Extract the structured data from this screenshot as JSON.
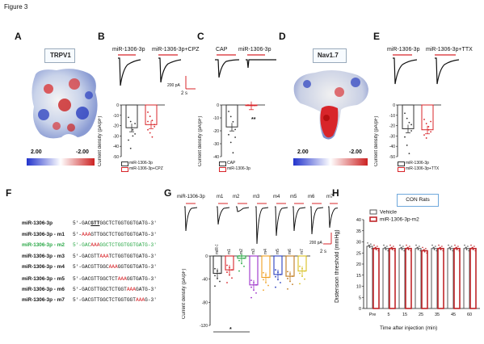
{
  "figure_title": "Figure 3",
  "panels": {
    "A": {
      "label": "A",
      "protein": "TRPV1",
      "scale_max": "2.00",
      "scale_min": "-2.00"
    },
    "B": {
      "label": "B",
      "trace_left": "miR-1306-3p",
      "trace_right": "miR-1306-3p+CPZ",
      "scale_current": "200 pA",
      "scale_time": "2 s",
      "ylabel": "Current density (pA/pF)",
      "legend": [
        "miR-1306-3p",
        "miR-1306-3p+CPZ"
      ]
    },
    "C": {
      "label": "C",
      "trace_left": "CAP",
      "trace_right": "miR-1306-3p",
      "ylabel": "Current density (pA/pF)",
      "legend": [
        "CAP",
        "miR-1306-3p"
      ],
      "sig": "**"
    },
    "D": {
      "label": "D",
      "protein": "Nav1.7",
      "scale_max": "2.00",
      "scale_min": "-2.00"
    },
    "E": {
      "label": "E",
      "trace_left": "miR-1306-3p",
      "trace_right": "miR-1306-3p+TTX",
      "ylabel": "Current density (pA/pF)",
      "legend": [
        "miR-1306-3p",
        "miR-1306-3p+TTX"
      ]
    },
    "F": {
      "label": "F"
    },
    "G": {
      "label": "G",
      "trace_labels": [
        "miR-1306-3p",
        "m1",
        "m2",
        "m3",
        "m4",
        "m5",
        "m6",
        "m7"
      ],
      "scale_current": "200 pA",
      "scale_time": "2 s",
      "ylabel": "Current density (pA/pF)",
      "sig": "*"
    },
    "H": {
      "label": "H",
      "title": "CON Rats",
      "legend": [
        "Vehicle",
        "miR-1306-3p-m2"
      ],
      "ylabel": "Distension threshold (mmHg)",
      "xlabel": "Time after injection (min)"
    }
  },
  "sequences": [
    {
      "name": "miR-1306-3p",
      "seq": "5'-GACGTTGGCTCTGGTGGTGATG-3'"
    },
    {
      "name": "miR-1306-3p - m1",
      "seq": "5'-AAAGTTGGCTCTGGTGGTGATG-3'"
    },
    {
      "name": "miR-1306-3p - m2",
      "seq": "5'-GACAAAGGCTCTGGTGGTGATG-3'"
    },
    {
      "name": "miR-1306-3p - m3",
      "seq": "5'-GACGTTAAATCTGGTGGTGATG-3'"
    },
    {
      "name": "miR-1306-3p - m4",
      "seq": "5'-GACGTTGGCAAAGGTGGTGATG-3'"
    },
    {
      "name": "miR-1306-3p - m5",
      "seq": "5'-GACGTTGGCTCTAAAGGTGATG-3'"
    },
    {
      "name": "miR-1306-3p - m6",
      "seq": "5'-GACGTTGGCTCTGGTAAAGATG-3'"
    },
    {
      "name": "miR-1306-3p - m7",
      "seq": "5'-GACGTTGGCTCTGGTGGTAAAG-3'"
    }
  ],
  "chart_data": [
    {
      "panel": "B",
      "type": "bar",
      "categories": [
        "miR-1306-3p",
        "miR-1306-3p+CPZ"
      ],
      "values": [
        -22,
        -19
      ],
      "ylim": [
        -50,
        0
      ],
      "yticks": [
        "0",
        "-10",
        "-20",
        "-30",
        "-40",
        "-50"
      ],
      "colors": [
        "#333333",
        "#d8252a"
      ]
    },
    {
      "panel": "C",
      "type": "bar",
      "categories": [
        "CAP",
        "miR-1306-3p"
      ],
      "values": [
        -17,
        -0.5
      ],
      "ylim": [
        -40,
        0
      ],
      "yticks": [
        "0",
        "-10",
        "-20",
        "-30",
        "-40"
      ],
      "colors": [
        "#333333",
        "#d8252a"
      ]
    },
    {
      "panel": "E",
      "type": "bar",
      "categories": [
        "miR-1306-3p",
        "miR-1306-3p+TTX"
      ],
      "values": [
        -23,
        -24
      ],
      "ylim": [
        -50,
        0
      ],
      "yticks": [
        "0",
        "-10",
        "-20",
        "-30",
        "-40",
        "-50"
      ],
      "colors": [
        "#333333",
        "#d8252a"
      ]
    },
    {
      "panel": "G",
      "type": "bar",
      "categories": [
        "miR-1306-3p",
        "m1",
        "m2",
        "m3",
        "m4",
        "m5",
        "m6",
        "m7"
      ],
      "values": [
        -30,
        -24,
        -4,
        -50,
        -37,
        -32,
        -35,
        -26
      ],
      "ylim": [
        -120,
        0
      ],
      "yticks": [
        "0",
        "-40",
        "-80",
        "-120"
      ],
      "colors": [
        "#333333",
        "#d8252a",
        "#28a745",
        "#9b30c9",
        "#f0a020",
        "#2a3fbf",
        "#c07a1f",
        "#d8c020"
      ]
    },
    {
      "panel": "H",
      "type": "bar",
      "categories": [
        "Pre",
        "5",
        "15",
        "25",
        "35",
        "45",
        "60"
      ],
      "series": [
        {
          "name": "Vehicle",
          "values": [
            28,
            27,
            27,
            27,
            27,
            27,
            27
          ]
        },
        {
          "name": "miR-1306-3p-m2",
          "values": [
            27,
            27,
            27,
            26,
            27,
            27,
            27
          ]
        }
      ],
      "ylim": [
        0,
        40
      ],
      "yticks": [
        "0",
        "5",
        "10",
        "15",
        "20",
        "25",
        "30",
        "35",
        "40"
      ],
      "colors": [
        "#555555",
        "#c0262a"
      ]
    }
  ]
}
